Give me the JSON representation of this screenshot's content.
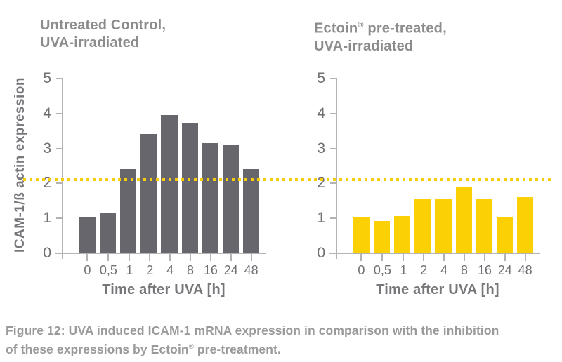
{
  "figure": {
    "caption_lines": [
      "Figure 12: UVA induced ICAM-1 mRNA expression in comparison with the inhibition",
      "of these expressions by Ectoin® pre-treatment."
    ]
  },
  "colors": {
    "bar_gray": "#66666c",
    "bar_yellow": "#fbd105",
    "reference_line_yellow": "#f6cd06",
    "axis_gray": "#b3b3b6",
    "tick_text_gray": "#6f6f74",
    "title_text_gray": "#8c8c8c",
    "caption_text_gray": "#9a9a9a"
  },
  "chart_data": [
    {
      "type": "bar",
      "title": "Untreated Control, UVA-irradiated",
      "title_lines": [
        "Untreated Control,",
        "UVA-irradiated"
      ],
      "categories": [
        "0",
        "0,5",
        "1",
        "2",
        "4",
        "8",
        "16",
        "24",
        "48"
      ],
      "values": [
        1.0,
        1.15,
        2.4,
        3.4,
        3.95,
        3.7,
        3.15,
        3.1,
        2.4
      ],
      "xlabel": "Time after UVA [h]",
      "ylabel": "ICAM-1/ß actin expression",
      "ylim": [
        0,
        5
      ],
      "yticks": [
        0,
        1,
        2,
        3,
        4,
        5
      ],
      "bar_color": "#66666c",
      "reference_line_y": 2.1,
      "grid": false,
      "legend": "none"
    },
    {
      "type": "bar",
      "title": "Ectoin® pre-treated, UVA-irradiated",
      "title_lines": [
        "Ectoin® pre-treated,",
        "UVA-irradiated"
      ],
      "categories": [
        "0",
        "0,5",
        "1",
        "2",
        "4",
        "8",
        "16",
        "24",
        "48"
      ],
      "values": [
        1.0,
        0.9,
        1.05,
        1.55,
        1.55,
        1.9,
        1.55,
        1.0,
        1.6
      ],
      "xlabel": "Time after UVA [h]",
      "ylabel": "ICAM-1/ß actin expression",
      "ylim": [
        0,
        5
      ],
      "yticks": [
        0,
        1,
        2,
        3,
        4,
        5
      ],
      "bar_color": "#fbd105",
      "reference_line_y": 2.1,
      "grid": false,
      "legend": "none"
    }
  ]
}
